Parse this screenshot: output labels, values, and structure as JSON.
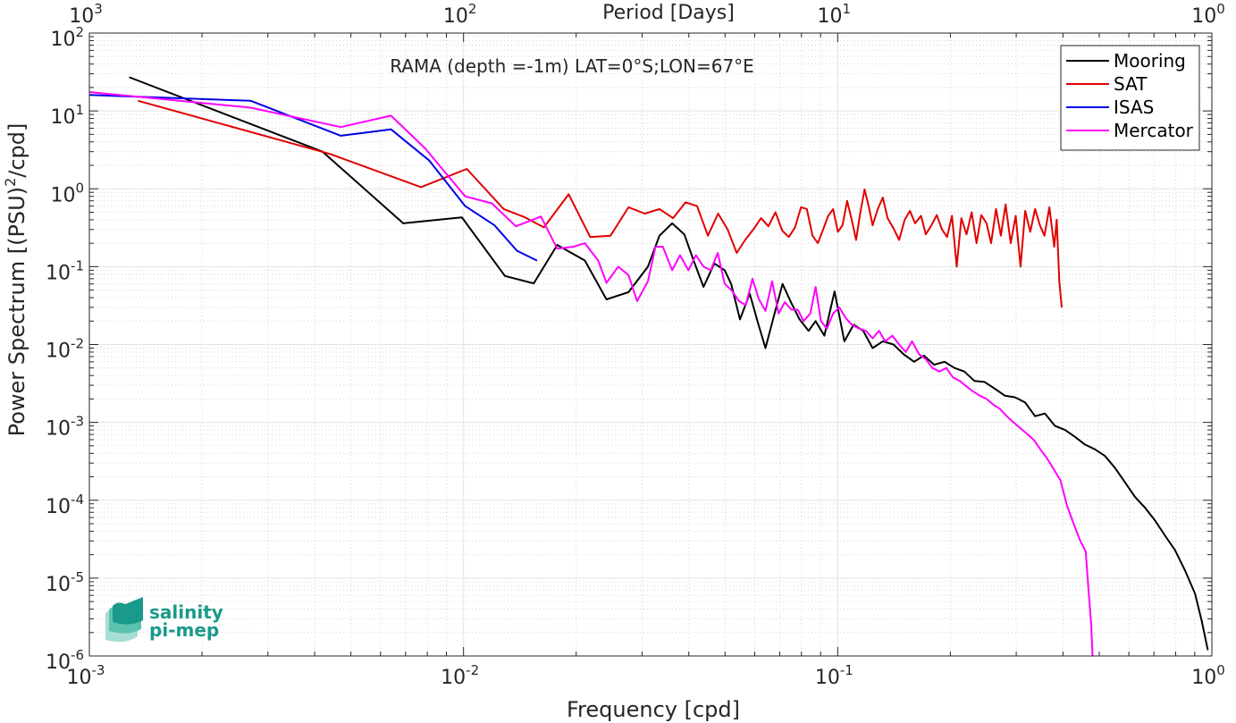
{
  "chart_data": {
    "type": "line",
    "title": "RAMA (depth =-1m) LAT=0°S;LON=67°E",
    "xlabel": "Frequency [cpd]",
    "ylabel": "Power Spectrum [(PSU)^2/cpd]",
    "ylabel_parts": {
      "main": "Power Spectrum [(PSU)",
      "sup": "2",
      "tail": "/cpd]"
    },
    "top_xlabel": "Period [Days]",
    "xscale": "log",
    "yscale": "log",
    "xlim": [
      0.001,
      1
    ],
    "ylim": [
      1e-06,
      100
    ],
    "grid": true,
    "minor_grid": true,
    "legend_location": "top-right",
    "x_ticks": [
      {
        "base": "10",
        "exp": "-3",
        "value": 0.001
      },
      {
        "base": "10",
        "exp": "-2",
        "value": 0.01
      },
      {
        "base": "10",
        "exp": "-1",
        "value": 0.1
      },
      {
        "base": "10",
        "exp": "0",
        "value": 1
      }
    ],
    "top_ticks": [
      {
        "base": "10",
        "exp": "3",
        "value": 0.001
      },
      {
        "base": "10",
        "exp": "2",
        "value": 0.01
      },
      {
        "base": "10",
        "exp": "1",
        "value": 0.1
      },
      {
        "base": "10",
        "exp": "0",
        "value": 1
      }
    ],
    "y_ticks": [
      {
        "base": "10",
        "exp": "-6",
        "value": 1e-06
      },
      {
        "base": "10",
        "exp": "-5",
        "value": 1e-05
      },
      {
        "base": "10",
        "exp": "-4",
        "value": 0.0001
      },
      {
        "base": "10",
        "exp": "-3",
        "value": 0.001
      },
      {
        "base": "10",
        "exp": "-2",
        "value": 0.01
      },
      {
        "base": "10",
        "exp": "-1",
        "value": 0.1
      },
      {
        "base": "10",
        "exp": "0",
        "value": 1
      },
      {
        "base": "10",
        "exp": "1",
        "value": 10
      },
      {
        "base": "10",
        "exp": "2",
        "value": 100
      }
    ],
    "series": [
      {
        "name": "Mooring",
        "color": "#000000",
        "points": [
          [
            0.00128,
            27
          ],
          [
            0.0042,
            3
          ],
          [
            0.0069,
            0.36
          ],
          [
            0.0099,
            0.43
          ],
          [
            0.0129,
            0.076
          ],
          [
            0.0154,
            0.061
          ],
          [
            0.0178,
            0.19
          ],
          [
            0.0211,
            0.12
          ],
          [
            0.0241,
            0.038
          ],
          [
            0.0276,
            0.047
          ],
          [
            0.0311,
            0.1
          ],
          [
            0.0334,
            0.25
          ],
          [
            0.0361,
            0.36
          ],
          [
            0.0389,
            0.26
          ],
          [
            0.0412,
            0.12
          ],
          [
            0.0438,
            0.055
          ],
          [
            0.0468,
            0.11
          ],
          [
            0.0499,
            0.09
          ],
          [
            0.0519,
            0.06
          ],
          [
            0.0548,
            0.021
          ],
          [
            0.0582,
            0.045
          ],
          [
            0.0612,
            0.019
          ],
          [
            0.0641,
            0.009
          ],
          [
            0.0678,
            0.025
          ],
          [
            0.0712,
            0.06
          ],
          [
            0.0752,
            0.034
          ],
          [
            0.0791,
            0.021
          ],
          [
            0.0836,
            0.015
          ],
          [
            0.0873,
            0.02
          ],
          [
            0.0921,
            0.013
          ],
          [
            0.0981,
            0.048
          ],
          [
            0.1042,
            0.011
          ],
          [
            0.1103,
            0.018
          ],
          [
            0.117,
            0.015
          ],
          [
            0.124,
            0.009
          ],
          [
            0.132,
            0.011
          ],
          [
            0.141,
            0.01
          ],
          [
            0.15,
            0.0075
          ],
          [
            0.16,
            0.006
          ],
          [
            0.17,
            0.0072
          ],
          [
            0.181,
            0.0055
          ],
          [
            0.193,
            0.006
          ],
          [
            0.205,
            0.005
          ],
          [
            0.218,
            0.0045
          ],
          [
            0.232,
            0.0034
          ],
          [
            0.247,
            0.0033
          ],
          [
            0.263,
            0.0027
          ],
          [
            0.28,
            0.0022
          ],
          [
            0.298,
            0.0021
          ],
          [
            0.317,
            0.0018
          ],
          [
            0.337,
            0.0012
          ],
          [
            0.358,
            0.0013
          ],
          [
            0.381,
            0.0009
          ],
          [
            0.405,
            0.0008
          ],
          [
            0.431,
            0.00065
          ],
          [
            0.458,
            0.00052
          ],
          [
            0.487,
            0.00045
          ],
          [
            0.518,
            0.00037
          ],
          [
            0.551,
            0.00026
          ],
          [
            0.586,
            0.00017
          ],
          [
            0.623,
            0.00011
          ],
          [
            0.663,
            8e-05
          ],
          [
            0.705,
            5.5e-05
          ],
          [
            0.75,
            3.5e-05
          ],
          [
            0.797,
            2.3e-05
          ],
          [
            0.848,
            1.25e-05
          ],
          [
            0.902,
            6.3e-06
          ],
          [
            0.94,
            2.8e-06
          ],
          [
            0.975,
            1.2e-06
          ]
        ]
      },
      {
        "name": "SAT",
        "color": "#e00000",
        "points": [
          [
            0.00135,
            13.5
          ],
          [
            0.0044,
            2.8
          ],
          [
            0.0077,
            1.05
          ],
          [
            0.0102,
            1.8
          ],
          [
            0.0128,
            0.55
          ],
          [
            0.0146,
            0.43
          ],
          [
            0.0164,
            0.32
          ],
          [
            0.0191,
            0.85
          ],
          [
            0.0218,
            0.24
          ],
          [
            0.0247,
            0.25
          ],
          [
            0.0276,
            0.58
          ],
          [
            0.0305,
            0.48
          ],
          [
            0.0334,
            0.55
          ],
          [
            0.0363,
            0.42
          ],
          [
            0.0392,
            0.67
          ],
          [
            0.0421,
            0.6
          ],
          [
            0.045,
            0.25
          ],
          [
            0.0479,
            0.48
          ],
          [
            0.0508,
            0.3
          ],
          [
            0.0537,
            0.15
          ],
          [
            0.0566,
            0.22
          ],
          [
            0.0595,
            0.3
          ],
          [
            0.0624,
            0.42
          ],
          [
            0.0653,
            0.33
          ],
          [
            0.0682,
            0.5
          ],
          [
            0.0711,
            0.29
          ],
          [
            0.074,
            0.24
          ],
          [
            0.0769,
            0.32
          ],
          [
            0.0798,
            0.58
          ],
          [
            0.0827,
            0.55
          ],
          [
            0.0856,
            0.25
          ],
          [
            0.0885,
            0.2
          ],
          [
            0.0914,
            0.3
          ],
          [
            0.0943,
            0.45
          ],
          [
            0.0972,
            0.55
          ],
          [
            0.1001,
            0.28
          ],
          [
            0.103,
            0.34
          ],
          [
            0.106,
            0.7
          ],
          [
            0.109,
            0.4
          ],
          [
            0.112,
            0.22
          ],
          [
            0.115,
            0.5
          ],
          [
            0.118,
            0.98
          ],
          [
            0.121,
            0.6
          ],
          [
            0.124,
            0.34
          ],
          [
            0.128,
            0.55
          ],
          [
            0.132,
            0.77
          ],
          [
            0.136,
            0.42
          ],
          [
            0.141,
            0.31
          ],
          [
            0.146,
            0.22
          ],
          [
            0.151,
            0.4
          ],
          [
            0.156,
            0.52
          ],
          [
            0.161,
            0.36
          ],
          [
            0.167,
            0.45
          ],
          [
            0.172,
            0.26
          ],
          [
            0.178,
            0.34
          ],
          [
            0.184,
            0.46
          ],
          [
            0.19,
            0.3
          ],
          [
            0.196,
            0.24
          ],
          [
            0.202,
            0.45
          ],
          [
            0.208,
            0.1
          ],
          [
            0.214,
            0.42
          ],
          [
            0.221,
            0.26
          ],
          [
            0.228,
            0.5
          ],
          [
            0.235,
            0.2
          ],
          [
            0.242,
            0.46
          ],
          [
            0.25,
            0.36
          ],
          [
            0.257,
            0.2
          ],
          [
            0.265,
            0.55
          ],
          [
            0.273,
            0.25
          ],
          [
            0.281,
            0.63
          ],
          [
            0.29,
            0.2
          ],
          [
            0.299,
            0.45
          ],
          [
            0.308,
            0.1
          ],
          [
            0.317,
            0.52
          ],
          [
            0.327,
            0.28
          ],
          [
            0.337,
            0.55
          ],
          [
            0.347,
            0.34
          ],
          [
            0.357,
            0.25
          ],
          [
            0.368,
            0.58
          ],
          [
            0.379,
            0.18
          ],
          [
            0.385,
            0.4
          ],
          [
            0.391,
            0.065
          ],
          [
            0.397,
            0.03
          ]
        ]
      },
      {
        "name": "ISAS",
        "color": "#0000e6",
        "points": [
          [
            0.001,
            16
          ],
          [
            0.0027,
            13.5
          ],
          [
            0.0047,
            4.8
          ],
          [
            0.0064,
            5.8
          ],
          [
            0.0081,
            2.3
          ],
          [
            0.0101,
            0.6
          ],
          [
            0.0121,
            0.34
          ],
          [
            0.0139,
            0.16
          ],
          [
            0.0157,
            0.12
          ]
        ]
      },
      {
        "name": "Mercator",
        "color": "#ff00ff",
        "points": [
          [
            0.001,
            17.5
          ],
          [
            0.0027,
            11
          ],
          [
            0.0047,
            6.2
          ],
          [
            0.0064,
            8.7
          ],
          [
            0.0079,
            3.3
          ],
          [
            0.0101,
            0.8
          ],
          [
            0.0119,
            0.65
          ],
          [
            0.0138,
            0.33
          ],
          [
            0.0161,
            0.44
          ],
          [
            0.0178,
            0.17
          ],
          [
            0.0197,
            0.18
          ],
          [
            0.0211,
            0.2
          ],
          [
            0.0229,
            0.12
          ],
          [
            0.0241,
            0.062
          ],
          [
            0.0259,
            0.1
          ],
          [
            0.0276,
            0.078
          ],
          [
            0.0291,
            0.036
          ],
          [
            0.0311,
            0.065
          ],
          [
            0.0326,
            0.18
          ],
          [
            0.0341,
            0.18
          ],
          [
            0.0361,
            0.09
          ],
          [
            0.0379,
            0.14
          ],
          [
            0.0399,
            0.09
          ],
          [
            0.0418,
            0.14
          ],
          [
            0.0438,
            0.1
          ],
          [
            0.0458,
            0.09
          ],
          [
            0.0478,
            0.15
          ],
          [
            0.0499,
            0.06
          ],
          [
            0.052,
            0.05
          ],
          [
            0.0545,
            0.036
          ],
          [
            0.0568,
            0.032
          ],
          [
            0.0592,
            0.07
          ],
          [
            0.0616,
            0.038
          ],
          [
            0.0641,
            0.027
          ],
          [
            0.0668,
            0.065
          ],
          [
            0.0695,
            0.025
          ],
          [
            0.0722,
            0.035
          ],
          [
            0.0752,
            0.028
          ],
          [
            0.0782,
            0.028
          ],
          [
            0.0811,
            0.02
          ],
          [
            0.0845,
            0.025
          ],
          [
            0.0873,
            0.055
          ],
          [
            0.0902,
            0.02
          ],
          [
            0.0936,
            0.016
          ],
          [
            0.0972,
            0.025
          ],
          [
            0.101,
            0.03
          ],
          [
            0.105,
            0.022
          ],
          [
            0.109,
            0.018
          ],
          [
            0.114,
            0.016
          ],
          [
            0.119,
            0.015
          ],
          [
            0.124,
            0.012
          ],
          [
            0.129,
            0.015
          ],
          [
            0.134,
            0.011
          ],
          [
            0.14,
            0.013
          ],
          [
            0.146,
            0.01
          ],
          [
            0.152,
            0.008
          ],
          [
            0.158,
            0.011
          ],
          [
            0.165,
            0.0075
          ],
          [
            0.172,
            0.0065
          ],
          [
            0.179,
            0.005
          ],
          [
            0.187,
            0.0045
          ],
          [
            0.195,
            0.005
          ],
          [
            0.203,
            0.0038
          ],
          [
            0.212,
            0.0034
          ],
          [
            0.221,
            0.0029
          ],
          [
            0.23,
            0.0025
          ],
          [
            0.24,
            0.0022
          ],
          [
            0.25,
            0.002
          ],
          [
            0.26,
            0.0017
          ],
          [
            0.271,
            0.0015
          ],
          [
            0.283,
            0.0012
          ],
          [
            0.295,
            0.001
          ],
          [
            0.307,
            0.00085
          ],
          [
            0.32,
            0.00072
          ],
          [
            0.334,
            0.0006
          ],
          [
            0.348,
            0.00045
          ],
          [
            0.362,
            0.00035
          ],
          [
            0.378,
            0.00025
          ],
          [
            0.394,
            0.00018
          ],
          [
            0.41,
            8.5e-05
          ],
          [
            0.427,
            5e-05
          ],
          [
            0.445,
            3e-05
          ],
          [
            0.46,
            2.2e-05
          ],
          [
            0.47,
            5.5e-06
          ],
          [
            0.476,
            2.5e-06
          ],
          [
            0.48,
            1e-06
          ]
        ]
      }
    ]
  },
  "logo": {
    "line1": "salinity",
    "line2": "pi-mep",
    "color": "#1a9a8a"
  }
}
